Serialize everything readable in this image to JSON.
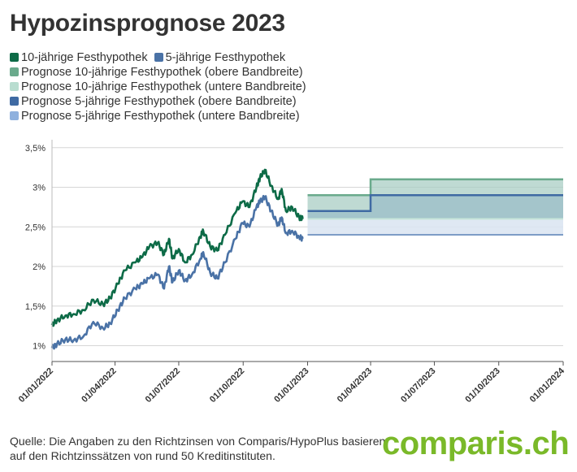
{
  "title": "Hypozinsprognose 2023",
  "legend": [
    {
      "label": "10-jährige Festhypothek",
      "color": "#0d6b47"
    },
    {
      "label": "5-jährige Festhypothek",
      "color": "#4a72a6"
    },
    {
      "label": "Prognose 10-jährige Festhypothek (obere Bandbreite)",
      "color": "#6aaa8c"
    },
    {
      "label": "Prognose 10-jährige Festhypothek (untere Bandbreite)",
      "color": "#b9ddd0"
    },
    {
      "label": "Prognose 5-jährige Festhypothek (obere Bandbreite)",
      "color": "#3f6aa3"
    },
    {
      "label": "Prognose 5-jährige Festhypothek (untere Bandbreite)",
      "color": "#8fb1de"
    }
  ],
  "source": "Quelle: Die Angaben zu den Richtzinsen von Comparis/HypoPlus basieren auf den Richtzinssätzen von rund 50 Kreditinstituten.",
  "logo": "comparis.ch",
  "chart_data": {
    "type": "line",
    "title": "Hypozinsprognose 2023",
    "y_ticks": [
      "1%",
      "1,5%",
      "2%",
      "2,5%",
      "3%",
      "3,5%"
    ],
    "y_tick_values": [
      1.0,
      1.5,
      2.0,
      2.5,
      3.0,
      3.5
    ],
    "ylim": [
      0.8,
      3.6
    ],
    "x_ticks": [
      "01/01/2022",
      "01/04/2022",
      "01/07/2022",
      "01/10/2022",
      "01/01/2023",
      "01/04/2023",
      "01/07/2023",
      "01/10/2023",
      "01/01/2024"
    ],
    "grid": true,
    "series": [
      {
        "name": "10-jährige Festhypothek",
        "color": "#0d6b47",
        "x": [
          "2022-01-01",
          "2022-01-08",
          "2022-01-20",
          "2022-02-01",
          "2022-02-15",
          "2022-03-01",
          "2022-03-15",
          "2022-03-25",
          "2022-04-05",
          "2022-04-15",
          "2022-04-30",
          "2022-05-10",
          "2022-05-20",
          "2022-06-01",
          "2022-06-10",
          "2022-06-17",
          "2022-06-22",
          "2022-07-01",
          "2022-07-10",
          "2022-07-20",
          "2022-08-01",
          "2022-08-05",
          "2022-08-15",
          "2022-08-25",
          "2022-09-05",
          "2022-09-20",
          "2022-09-30",
          "2022-10-10",
          "2022-10-20",
          "2022-10-25",
          "2022-11-01",
          "2022-11-10",
          "2022-11-20",
          "2022-11-25",
          "2022-12-01",
          "2022-12-10",
          "2022-12-20",
          "2022-12-25"
        ],
        "y": [
          1.26,
          1.32,
          1.38,
          1.4,
          1.45,
          1.58,
          1.52,
          1.6,
          1.78,
          1.95,
          2.05,
          2.12,
          2.25,
          2.3,
          2.15,
          2.35,
          2.1,
          2.22,
          2.05,
          2.15,
          2.38,
          2.45,
          2.25,
          2.2,
          2.4,
          2.68,
          2.82,
          2.75,
          3.0,
          3.12,
          3.22,
          3.02,
          2.85,
          2.98,
          2.7,
          2.75,
          2.62,
          2.6
        ]
      },
      {
        "name": "5-jährige Festhypothek",
        "color": "#4a72a6",
        "x": [
          "2022-01-01",
          "2022-01-08",
          "2022-01-20",
          "2022-02-01",
          "2022-02-15",
          "2022-03-01",
          "2022-03-15",
          "2022-03-25",
          "2022-04-05",
          "2022-04-15",
          "2022-04-30",
          "2022-05-10",
          "2022-05-20",
          "2022-06-01",
          "2022-06-10",
          "2022-06-17",
          "2022-06-22",
          "2022-07-01",
          "2022-07-10",
          "2022-07-20",
          "2022-08-01",
          "2022-08-05",
          "2022-08-15",
          "2022-08-25",
          "2022-09-05",
          "2022-09-20",
          "2022-09-30",
          "2022-10-10",
          "2022-10-20",
          "2022-10-25",
          "2022-11-01",
          "2022-11-10",
          "2022-11-20",
          "2022-11-25",
          "2022-12-01",
          "2022-12-10",
          "2022-12-20",
          "2022-12-25"
        ],
        "y": [
          0.97,
          1.02,
          1.08,
          1.07,
          1.12,
          1.3,
          1.22,
          1.28,
          1.45,
          1.6,
          1.72,
          1.78,
          1.85,
          1.9,
          1.72,
          2.0,
          1.8,
          1.95,
          1.82,
          1.9,
          2.1,
          2.18,
          1.92,
          1.85,
          2.05,
          2.35,
          2.55,
          2.5,
          2.75,
          2.82,
          2.88,
          2.7,
          2.52,
          2.62,
          2.42,
          2.45,
          2.37,
          2.35
        ]
      }
    ],
    "forecast": [
      {
        "name": "Prognose 10-jährige Festhypothek (obere Bandbreite)",
        "color": "#6aaa8c",
        "x": [
          "2023-01-01",
          "2023-04-01",
          "2024-01-01"
        ],
        "y": [
          2.9,
          3.1,
          3.1
        ]
      },
      {
        "name": "Prognose 10-jährige Festhypothek (untere Bandbreite)",
        "color": "#b9ddd0",
        "x": [
          "2023-01-01",
          "2024-01-01"
        ],
        "y": [
          2.6,
          2.6
        ]
      },
      {
        "name": "Prognose 5-jährige Festhypothek (obere Bandbreite)",
        "color": "#3f6aa3",
        "x": [
          "2023-01-01",
          "2023-04-01",
          "2024-01-01"
        ],
        "y": [
          2.7,
          2.9,
          2.9
        ]
      },
      {
        "name": "Prognose 5-jährige Festhypothek (untere Bandbreite)",
        "color": "#8fb1de",
        "x": [
          "2023-01-01",
          "2024-01-01"
        ],
        "y": [
          2.4,
          2.4
        ]
      }
    ]
  }
}
